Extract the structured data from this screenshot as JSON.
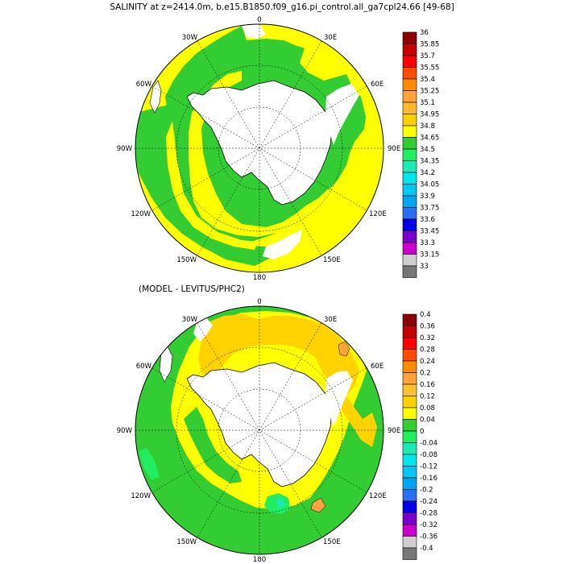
{
  "panels": [
    {
      "title": "SALINITY at z=2414.0m, b.e15.B1850.f09_g16.pi_control.all_ga7cpl24.66 [49-68]",
      "longitude_labels": {
        "lon_0": "0",
        "lon_30E": "30E",
        "lon_60E": "60E",
        "lon_90E": "90E",
        "lon_120E": "120E",
        "lon_150E": "150E",
        "lon_180": "180",
        "lon_150W": "150W",
        "lon_120W": "120W",
        "lon_90W": "90W",
        "lon_60W": "60W",
        "lon_30W": "30W"
      },
      "colorbar": {
        "labels": [
          "36",
          "35.85",
          "35.7",
          "35.55",
          "35.4",
          "35.25",
          "35.1",
          "34.95",
          "34.8",
          "34.65",
          "34.5",
          "34.35",
          "34.2",
          "34.05",
          "33.9",
          "33.75",
          "33.6",
          "33.45",
          "33.3",
          "33.15",
          "33"
        ],
        "colors": [
          "#8b0000",
          "#c80000",
          "#ff0000",
          "#ff4a00",
          "#ff8c00",
          "#ffa33a",
          "#ffb830",
          "#ffd000",
          "#ffff00",
          "#33cc33",
          "#20ee60",
          "#1de9b6",
          "#00e5ee",
          "#00c8f0",
          "#00a5f0",
          "#2a6ff0",
          "#0000e8",
          "#7a00d0",
          "#cc00cc",
          "#cfcfcf",
          "#777777"
        ]
      },
      "map_fill_colors": {
        "dominant": "#ffff00",
        "secondary": "#33cc33",
        "land": "#ffffff"
      }
    },
    {
      "title": "(MODEL - LEVITUS/PHC2)",
      "longitude_labels": {
        "lon_0": "0",
        "lon_30E": "30E",
        "lon_60E": "60E",
        "lon_90E": "90E",
        "lon_120E": "120E",
        "lon_150E": "150E",
        "lon_180": "180",
        "lon_150W": "150W",
        "lon_120W": "120W",
        "lon_90W": "90W",
        "lon_60W": "60W",
        "lon_30W": "30W"
      },
      "colorbar": {
        "labels": [
          "0.4",
          "0.36",
          "0.32",
          "0.28",
          "0.24",
          "0.2",
          "0.16",
          "0.12",
          "0.08",
          "0.04",
          "0",
          "-0.04",
          "-0.08",
          "-0.12",
          "-0.16",
          "-0.2",
          "-0.24",
          "-0.28",
          "-0.32",
          "-0.36",
          "-0.4"
        ],
        "colors": [
          "#8b0000",
          "#c80000",
          "#ff0000",
          "#ff4a00",
          "#ff8c00",
          "#ffa33a",
          "#ffc330",
          "#ffd200",
          "#ffff00",
          "#33cc33",
          "#20ee60",
          "#1de9b6",
          "#00e5ee",
          "#00c8f0",
          "#00a5f0",
          "#2a6ff0",
          "#0000e8",
          "#7a00d0",
          "#cc00cc",
          "#cfcfcf",
          "#777777"
        ]
      },
      "map_fill_colors": {
        "dominant": "#33cc33",
        "secondary": "#ffd200",
        "tertiary": "#ffff00",
        "land": "#ffffff"
      }
    }
  ]
}
